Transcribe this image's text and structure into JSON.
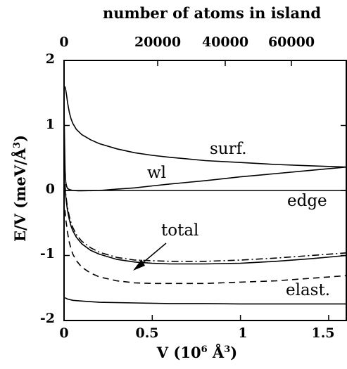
{
  "chart_data": {
    "type": "line",
    "top_axis": {
      "label": "number of atoms in island",
      "ticks": [
        "0",
        "20000",
        "40000",
        "60000"
      ]
    },
    "x_axis": {
      "label": "V (10",
      "label_sup1": "6",
      "label_mid": " Å",
      "label_sup2": "3",
      "label_end": ")",
      "ticks": [
        "0",
        "0.5",
        "1",
        "1.5"
      ],
      "tick_values": [
        0,
        0.5,
        1,
        1.5
      ],
      "lim": [
        0,
        1.6
      ]
    },
    "y_axis": {
      "label": "E/V (meV/Å",
      "label_sup": "3",
      "label_end": ")",
      "ticks": [
        "2",
        "1",
        "0",
        "-1",
        "-2"
      ],
      "tick_values": [
        2,
        1,
        0,
        -1,
        -2
      ],
      "lim": [
        -2,
        2
      ]
    },
    "annotations": {
      "surf": "surf.",
      "wl": "wl",
      "edge": "edge",
      "total": "total",
      "elast": "elast."
    },
    "series": [
      {
        "key": "surf",
        "style": "solid",
        "x": [
          0.005,
          0.01,
          0.015,
          0.02,
          0.03,
          0.04,
          0.05,
          0.07,
          0.1,
          0.15,
          0.2,
          0.3,
          0.4,
          0.5,
          0.6,
          0.8,
          1.0,
          1.2,
          1.4,
          1.6
        ],
        "y": [
          1.6,
          1.54,
          1.45,
          1.35,
          1.2,
          1.1,
          1.03,
          0.94,
          0.86,
          0.78,
          0.72,
          0.64,
          0.58,
          0.54,
          0.51,
          0.46,
          0.43,
          0.4,
          0.38,
          0.36
        ]
      },
      {
        "key": "wl",
        "style": "solid",
        "x": [
          0.0,
          0.003,
          0.006,
          0.01,
          0.015,
          0.02,
          0.03,
          0.05,
          0.08,
          0.1,
          0.2,
          0.3,
          0.4,
          0.5,
          0.6,
          0.8,
          1.0,
          1.2,
          1.4,
          1.6
        ],
        "y": [
          1.25,
          0.7,
          0.3,
          0.12,
          0.06,
          0.03,
          0.015,
          0.0,
          -0.005,
          -0.005,
          0.0,
          0.02,
          0.04,
          0.07,
          0.1,
          0.15,
          0.21,
          0.26,
          0.31,
          0.36
        ]
      },
      {
        "key": "edge",
        "style": "solid",
        "x": [
          0.0,
          1.6
        ],
        "y": [
          0.0,
          0.0
        ]
      },
      {
        "key": "total",
        "style": "dashdot",
        "x": [
          0.005,
          0.01,
          0.015,
          0.02,
          0.03,
          0.04,
          0.05,
          0.07,
          0.1,
          0.15,
          0.2,
          0.3,
          0.4,
          0.5,
          0.6,
          0.8,
          1.0,
          1.2,
          1.4,
          1.6
        ],
        "y": [
          0.1,
          -0.06,
          -0.18,
          -0.27,
          -0.4,
          -0.5,
          -0.57,
          -0.68,
          -0.78,
          -0.88,
          -0.95,
          -1.03,
          -1.07,
          -1.08,
          -1.09,
          -1.09,
          -1.07,
          -1.04,
          -1.0,
          -0.96
        ]
      },
      {
        "key": "solid_mid",
        "style": "solid",
        "x": [
          0.005,
          0.01,
          0.015,
          0.02,
          0.03,
          0.04,
          0.05,
          0.07,
          0.1,
          0.15,
          0.2,
          0.3,
          0.4,
          0.5,
          0.6,
          0.8,
          1.0,
          1.2,
          1.4,
          1.6
        ],
        "y": [
          0.05,
          -0.1,
          -0.22,
          -0.31,
          -0.45,
          -0.55,
          -0.62,
          -0.72,
          -0.82,
          -0.92,
          -0.98,
          -1.06,
          -1.1,
          -1.12,
          -1.13,
          -1.13,
          -1.12,
          -1.09,
          -1.05,
          -1.0
        ]
      },
      {
        "key": "dashed",
        "style": "dashed",
        "x": [
          0.005,
          0.01,
          0.015,
          0.02,
          0.03,
          0.04,
          0.05,
          0.07,
          0.1,
          0.15,
          0.2,
          0.3,
          0.4,
          0.5,
          0.6,
          0.8,
          1.0,
          1.2,
          1.4,
          1.6
        ],
        "y": [
          -0.3,
          -0.45,
          -0.55,
          -0.65,
          -0.8,
          -0.9,
          -0.98,
          -1.08,
          -1.18,
          -1.27,
          -1.33,
          -1.39,
          -1.42,
          -1.43,
          -1.43,
          -1.43,
          -1.41,
          -1.39,
          -1.35,
          -1.31
        ]
      },
      {
        "key": "elast",
        "style": "solid",
        "x": [
          0.005,
          0.02,
          0.05,
          0.1,
          0.2,
          0.4,
          0.6,
          0.8,
          1.0,
          1.2,
          1.4,
          1.6
        ],
        "y": [
          -1.65,
          -1.67,
          -1.69,
          -1.7,
          -1.72,
          -1.73,
          -1.74,
          -1.74,
          -1.745,
          -1.745,
          -1.745,
          -1.745
        ]
      }
    ]
  }
}
